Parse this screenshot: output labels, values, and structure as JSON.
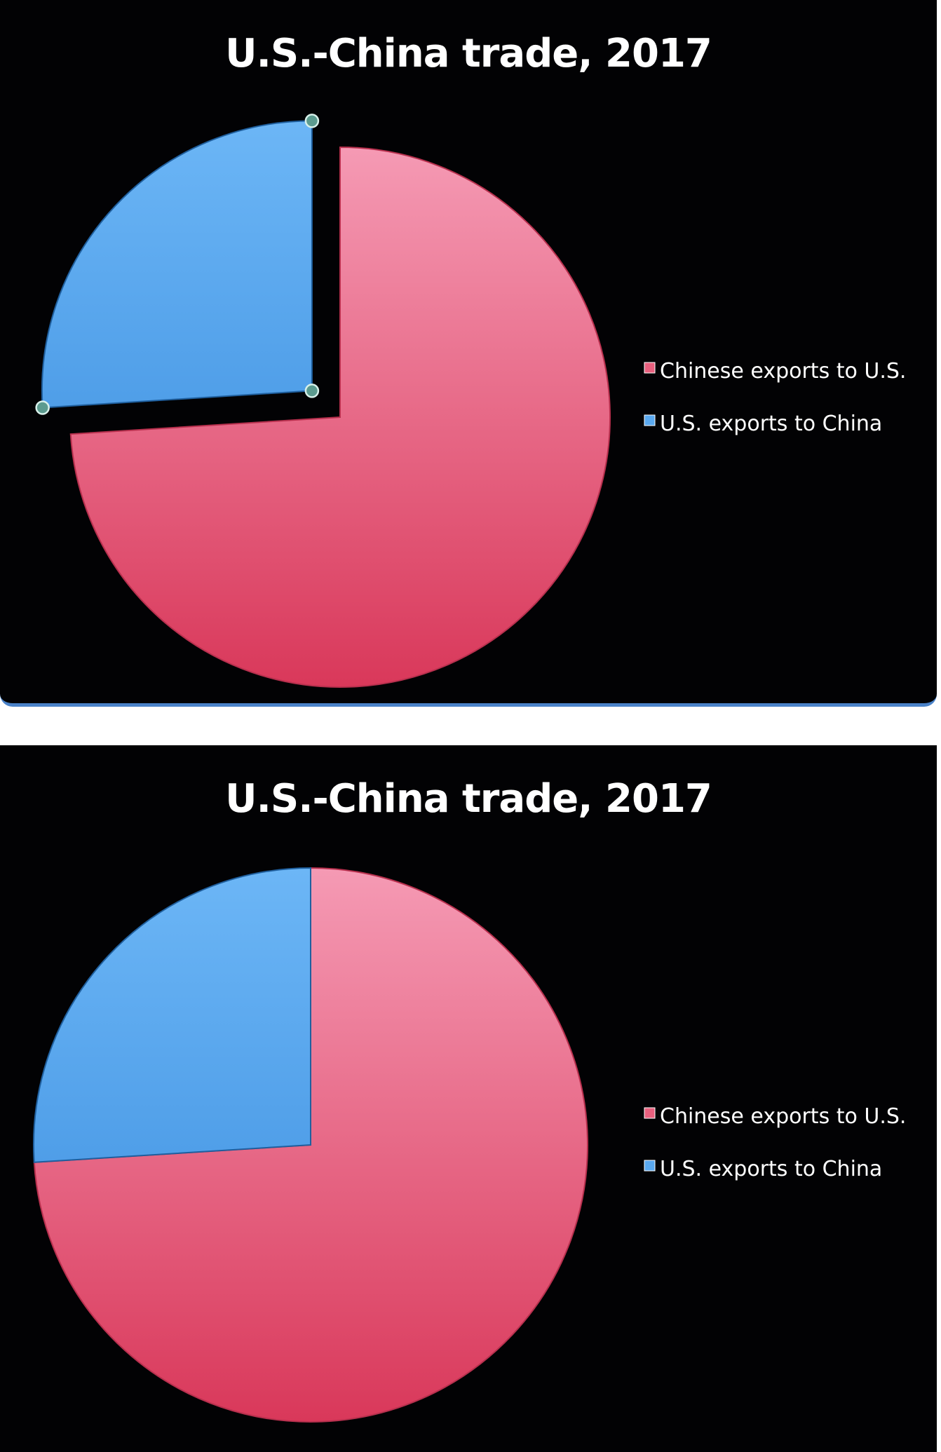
{
  "chart_data": [
    {
      "type": "pie",
      "title": "U.S.-China trade, 2017",
      "categories": [
        "Chinese exports to U.S.",
        "U.S. exports to China"
      ],
      "values": [
        74,
        26
      ],
      "unit": "percent",
      "colors": [
        "#e8607e",
        "#5aa9f0"
      ],
      "exploded_slice": "U.S. exports to China",
      "slice_selected": true,
      "legend_position": "right"
    },
    {
      "type": "pie",
      "title": "U.S.-China trade, 2017",
      "categories": [
        "Chinese exports to U.S.",
        "U.S. exports to China"
      ],
      "values": [
        74,
        26
      ],
      "unit": "percent",
      "colors": [
        "#e8607e",
        "#5aa9f0"
      ],
      "exploded_slice": null,
      "slice_selected": false,
      "legend_position": "right"
    }
  ]
}
